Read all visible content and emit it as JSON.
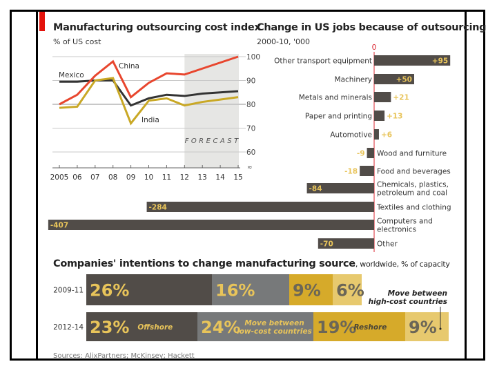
{
  "colors": {
    "china": "#e8462e",
    "mexico": "#333333",
    "india": "#c9a825",
    "bar_dark": "#514c48",
    "bar_grey": "#77797a",
    "bar_gold": "#d6aa2a",
    "bar_light_gold": "#e7c96e",
    "label_gold": "#e8c45a",
    "zero_line": "#d9232e",
    "forecast_bg": "#e6e6e4"
  },
  "source": "Sources: AlixPartners; McKinsey; Hackett",
  "chart_data": [
    {
      "type": "line",
      "title": "Manufacturing outsourcing cost index",
      "subtitle": "% of US cost",
      "x": [
        "2005",
        "06",
        "07",
        "08",
        "09",
        "10",
        "11",
        "12",
        "13",
        "14",
        "15"
      ],
      "ylim": [
        60,
        100
      ],
      "yticks": [
        "100",
        "90",
        "80",
        "70",
        "60"
      ],
      "y_axis_side": "right",
      "grid": true,
      "forecast": {
        "label": "FORECAST",
        "from": "12",
        "to": "15"
      },
      "series": [
        {
          "name": "China",
          "values": [
            80,
            84,
            92,
            98,
            83,
            89,
            93,
            92.5,
            95,
            97.5,
            100
          ]
        },
        {
          "name": "Mexico",
          "values": [
            89.5,
            89.5,
            90,
            90,
            79.5,
            82.5,
            84,
            83.5,
            84.5,
            85,
            85.5
          ]
        },
        {
          "name": "India",
          "values": [
            78.5,
            79,
            90,
            91,
            72,
            81.5,
            82.5,
            79.5,
            81,
            82,
            83
          ]
        }
      ]
    },
    {
      "type": "bar",
      "orientation": "horizontal",
      "title": "Change in US jobs because of outsourcing",
      "subtitle": "2000-10, '000",
      "zero_label": "0",
      "categories": [
        "Other transport equipment",
        "Machinery",
        "Metals and minerals",
        "Paper and printing",
        "Automotive",
        "Wood and furniture",
        "Food and beverages",
        "Chemicals, plastics, petroleum and coal",
        "Textiles and clothing",
        "Computers and electronics",
        "Other"
      ],
      "category_lines": [
        [
          "Other transport equipment"
        ],
        [
          "Machinery"
        ],
        [
          "Metals and minerals"
        ],
        [
          "Paper and printing"
        ],
        [
          "Automotive"
        ],
        [
          "Wood and furniture"
        ],
        [
          "Food and beverages"
        ],
        [
          "Chemicals, plastics,",
          "petroleum and coal"
        ],
        [
          "Textiles and clothing"
        ],
        [
          "Computers and",
          "electronics"
        ],
        [
          "Other"
        ]
      ],
      "values": [
        95,
        50,
        21,
        13,
        6,
        -9,
        -18,
        -84,
        -284,
        -407,
        -70
      ],
      "data_labels": [
        "+95",
        "+50",
        "+21",
        "+13",
        "+6",
        "-9",
        "-18",
        "-84",
        "-284",
        "-407",
        "-70"
      ]
    },
    {
      "type": "bar",
      "orientation": "horizontal",
      "stacked": true,
      "title": "Companies' intentions to change manufacturing source",
      "subtitle": ", worldwide, % of capacity",
      "categories": [
        "2009-11",
        "2012-14"
      ],
      "series": [
        {
          "name": "Offshore",
          "label_lines": [
            "Offshore"
          ],
          "values": [
            26,
            23
          ]
        },
        {
          "name": "Move between low-cost countries",
          "label_lines": [
            "Move between",
            "low-cost countries"
          ],
          "values": [
            16,
            24
          ]
        },
        {
          "name": "Reshore",
          "label_lines": [
            "Reshore"
          ],
          "values": [
            9,
            19
          ]
        },
        {
          "name": "Move between high-cost countries",
          "label_lines": [
            "Move between",
            "high-cost countries"
          ],
          "values": [
            6,
            9
          ]
        }
      ]
    }
  ]
}
